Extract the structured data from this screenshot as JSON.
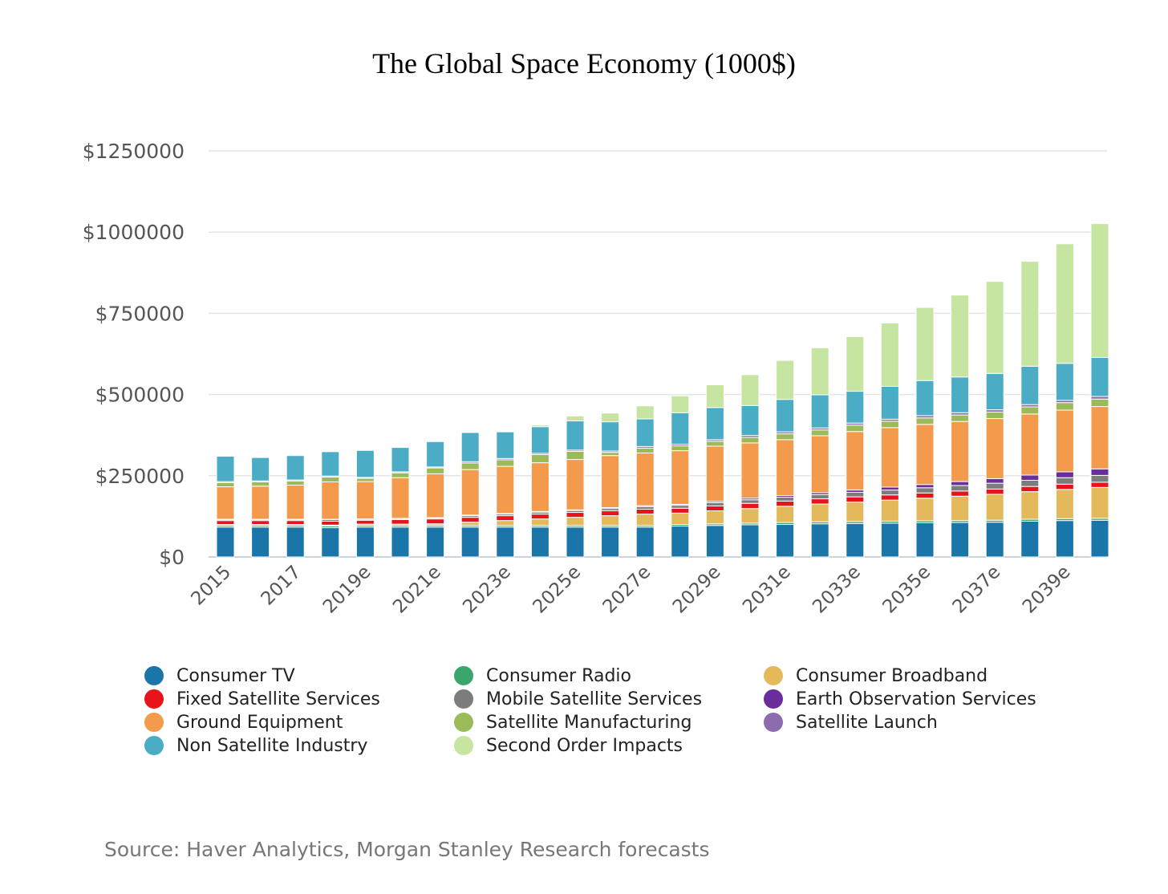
{
  "chart_data": {
    "type": "bar",
    "stacked": true,
    "title": "The Global Space Economy (1000$)",
    "source": "Source: Haver Analytics, Morgan Stanley Research forecasts",
    "ylim": [
      0,
      1250000
    ],
    "yticks": [
      "$0",
      "$250000",
      "$500000",
      "$750000",
      "$1000000",
      "$1250000"
    ],
    "grid": true,
    "legend_position": "bottom",
    "categories": [
      "2015",
      "2016",
      "2017",
      "2018",
      "2019e",
      "2020e",
      "2021e",
      "2022e",
      "2023e",
      "2024e",
      "2025e",
      "2026e",
      "2027e",
      "2028e",
      "2029e",
      "2030e",
      "2031e",
      "2032e",
      "2033e",
      "2034e",
      "2035e",
      "2036e",
      "2037e",
      "2038e",
      "2039e",
      "2040e"
    ],
    "xtick_labels": [
      "2015",
      "2017",
      "2019e",
      "2021e",
      "2023e",
      "2025e",
      "2027e",
      "2029e",
      "2031e",
      "2033e",
      "2035e",
      "2037e",
      "2039e"
    ],
    "series": [
      {
        "name": "Consumer TV",
        "color": "#1a75a8",
        "values": [
          92000,
          92000,
          92000,
          90000,
          92000,
          92000,
          92000,
          92000,
          92000,
          92000,
          92000,
          92000,
          92000,
          95000,
          97000,
          99000,
          100000,
          102000,
          103000,
          104000,
          105000,
          106000,
          107000,
          110000,
          112000,
          113000
        ]
      },
      {
        "name": "Consumer Radio",
        "color": "#3aa66b",
        "values": [
          5000,
          5000,
          5000,
          5000,
          5000,
          5000,
          5000,
          5000,
          5000,
          5000,
          5000,
          5000,
          5000,
          5000,
          5000,
          5000,
          6000,
          6000,
          6000,
          6000,
          6000,
          6000,
          6000,
          6000,
          6000,
          6000
        ]
      },
      {
        "name": "Consumer Broadband",
        "color": "#e3b95c",
        "values": [
          3000,
          3000,
          3000,
          3000,
          4000,
          4000,
          5000,
          10000,
          15000,
          20000,
          25000,
          30000,
          35000,
          35000,
          40000,
          45000,
          50000,
          55000,
          60000,
          65000,
          70000,
          75000,
          80000,
          85000,
          90000,
          95000
        ]
      },
      {
        "name": "Fixed Satellite Services",
        "color": "#e8141c",
        "values": [
          12000,
          12000,
          12000,
          12000,
          12000,
          14000,
          15000,
          15000,
          15000,
          15000,
          15000,
          15000,
          15000,
          15000,
          15000,
          16000,
          16000,
          16000,
          16000,
          16000,
          16000,
          16000,
          16000,
          16000,
          16000,
          16000
        ]
      },
      {
        "name": "Mobile Satellite Services",
        "color": "#7c7c7c",
        "values": [
          3000,
          3000,
          3000,
          5000,
          3000,
          3000,
          3000,
          5000,
          5000,
          6000,
          6000,
          7000,
          8000,
          9000,
          10000,
          11000,
          12000,
          13000,
          14000,
          15000,
          16000,
          17000,
          18000,
          19000,
          20000,
          21000
        ]
      },
      {
        "name": "Earth Observation Services",
        "color": "#6a2e9c",
        "values": [
          1000,
          1000,
          1000,
          1000,
          1000,
          1000,
          1000,
          2000,
          2000,
          2000,
          2000,
          3000,
          3000,
          3000,
          4000,
          5000,
          5000,
          6000,
          7000,
          9000,
          10000,
          12000,
          14000,
          16000,
          18000,
          20000
        ]
      },
      {
        "name": "Ground Equipment",
        "color": "#f39a4c",
        "values": [
          100000,
          102000,
          105000,
          115000,
          115000,
          125000,
          135000,
          140000,
          145000,
          150000,
          155000,
          160000,
          162000,
          165000,
          170000,
          170000,
          172000,
          175000,
          180000,
          183000,
          185000,
          185000,
          185000,
          188000,
          190000,
          192000
        ]
      },
      {
        "name": "Satellite Manufacturing",
        "color": "#9bbb59",
        "values": [
          13000,
          13000,
          13000,
          15000,
          10000,
          15000,
          18000,
          20000,
          20000,
          25000,
          25000,
          10000,
          15000,
          15000,
          15000,
          17000,
          18000,
          18000,
          20000,
          20000,
          20000,
          20000,
          20000,
          22000,
          23000,
          23000
        ]
      },
      {
        "name": "Satellite Launch",
        "color": "#8c6bae",
        "values": [
          3000,
          3000,
          3000,
          3000,
          3000,
          3000,
          3000,
          4000,
          4000,
          4000,
          4000,
          4000,
          5000,
          5000,
          5000,
          6000,
          6000,
          6000,
          6000,
          6000,
          7000,
          7000,
          7000,
          7000,
          7000,
          8000
        ]
      },
      {
        "name": "Non Satellite Industry",
        "color": "#4bacc6",
        "values": [
          78000,
          72000,
          75000,
          75000,
          83000,
          75000,
          78000,
          90000,
          82000,
          82000,
          90000,
          90000,
          85000,
          97000,
          99000,
          92000,
          100000,
          102000,
          98000,
          101000,
          108000,
          110000,
          112000,
          118000,
          114000,
          120000
        ]
      },
      {
        "name": "Second Order Impacts",
        "color": "#c5e5a0",
        "values": [
          0,
          0,
          0,
          0,
          0,
          0,
          0,
          0,
          0,
          5000,
          15000,
          27000,
          40000,
          52000,
          70000,
          95000,
          120000,
          145000,
          168000,
          195000,
          225000,
          252000,
          283000,
          323000,
          368000,
          412000
        ]
      }
    ]
  }
}
